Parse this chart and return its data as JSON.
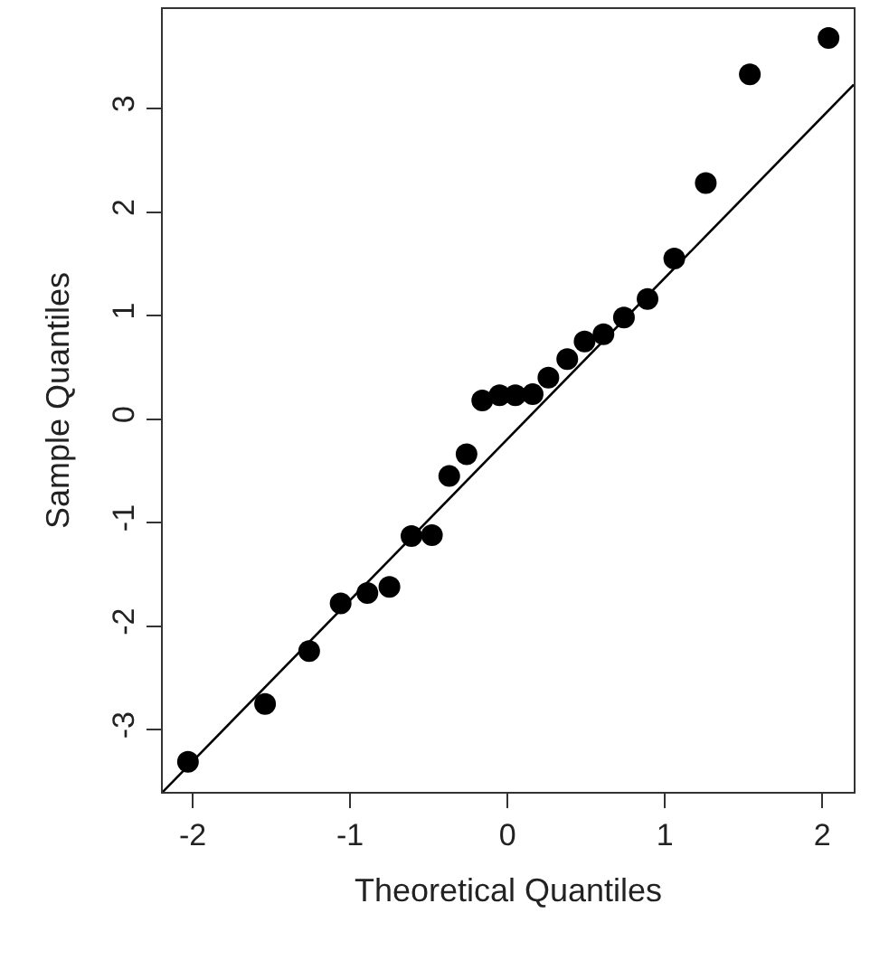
{
  "chart_data": {
    "type": "scatter",
    "xlabel": "Theoretical Quantiles",
    "ylabel": "Sample Quantiles",
    "xlim": [
      -2.19,
      2.2
    ],
    "ylim": [
      -3.6,
      3.96
    ],
    "xticks": [
      -2,
      -1,
      0,
      1,
      2
    ],
    "yticks": [
      -3,
      -2,
      -1,
      0,
      1,
      2,
      3
    ],
    "legend": false,
    "series": [
      {
        "marker": "circle",
        "color": "#000000",
        "x": [
          -2.03,
          -1.54,
          -1.26,
          -1.06,
          -0.89,
          -0.75,
          -0.61,
          -0.48,
          -0.37,
          -0.26,
          -0.16,
          -0.05,
          0.05,
          0.16,
          0.26,
          0.38,
          0.49,
          0.61,
          0.74,
          0.89,
          1.06,
          1.26,
          1.54,
          2.04
        ],
        "values": [
          -3.31,
          -2.75,
          -2.24,
          -1.78,
          -1.68,
          -1.62,
          -1.13,
          -1.12,
          -0.55,
          -0.34,
          0.18,
          0.23,
          0.23,
          0.24,
          0.4,
          0.58,
          0.75,
          0.82,
          0.98,
          1.16,
          1.55,
          2.28,
          3.33,
          3.68
        ]
      },
      {
        "type": "line",
        "color": "#000000",
        "line_style": "solid",
        "x": [
          -2.19,
          2.2
        ],
        "values": [
          -3.6,
          3.23
        ]
      }
    ]
  }
}
